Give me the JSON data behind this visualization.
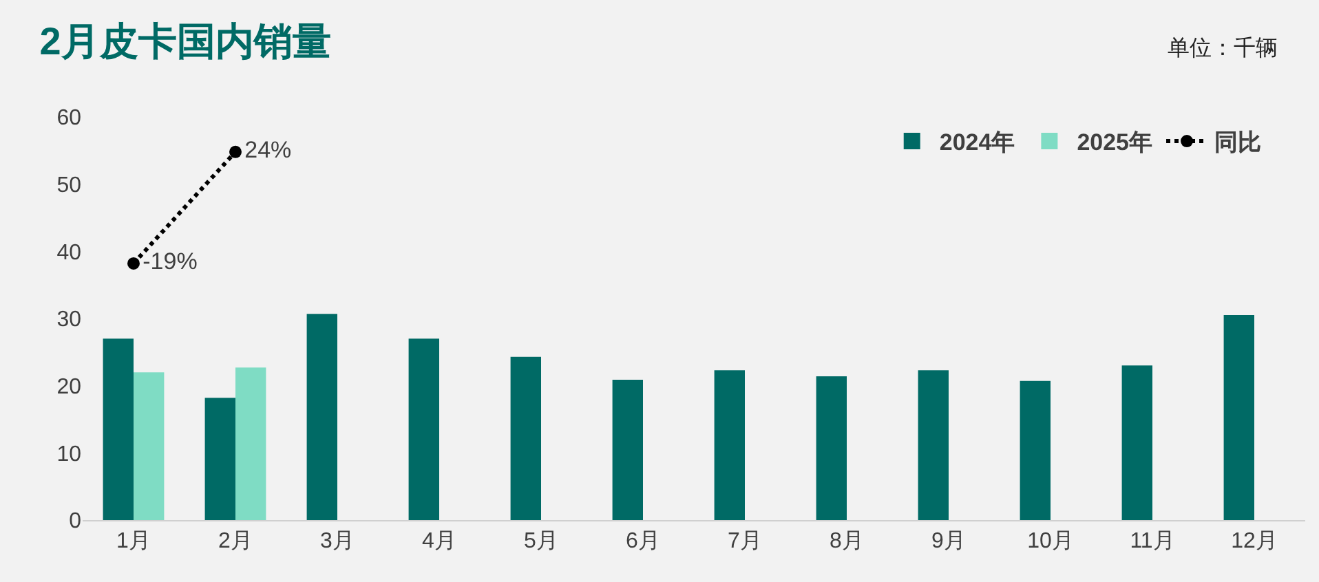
{
  "chart_data": {
    "type": "bar",
    "title": "2月皮卡国内销量",
    "annotations": [
      "单位：千辆"
    ],
    "categories": [
      "1月",
      "2月",
      "3月",
      "4月",
      "5月",
      "6月",
      "7月",
      "8月",
      "9月",
      "10月",
      "11月",
      "12月"
    ],
    "series": [
      {
        "name": "2024年",
        "color": "#006a65",
        "values": [
          27,
          18.2,
          30.7,
          27,
          24.3,
          20.9,
          22.3,
          21.4,
          22.3,
          20.7,
          23,
          30.5
        ]
      },
      {
        "name": "2025年",
        "color": "#7fdcc4",
        "values": [
          22,
          22.7,
          null,
          null,
          null,
          null,
          null,
          null,
          null,
          null,
          null,
          null
        ]
      },
      {
        "name": "同比",
        "type": "line",
        "axis": "y2",
        "color": "#000000",
        "marker": "circle",
        "line_style": "dotted",
        "values": [
          -19,
          24,
          null,
          null,
          null,
          null,
          null,
          null,
          null,
          null,
          null,
          null
        ],
        "value_labels": [
          "-19%",
          "24%",
          null,
          null,
          null,
          null,
          null,
          null,
          null,
          null,
          null,
          null
        ]
      }
    ],
    "ylim": [
      0,
      60
    ],
    "yticks": [
      0,
      10,
      20,
      30,
      40,
      50,
      60
    ],
    "grid": false,
    "legend": "top right"
  }
}
